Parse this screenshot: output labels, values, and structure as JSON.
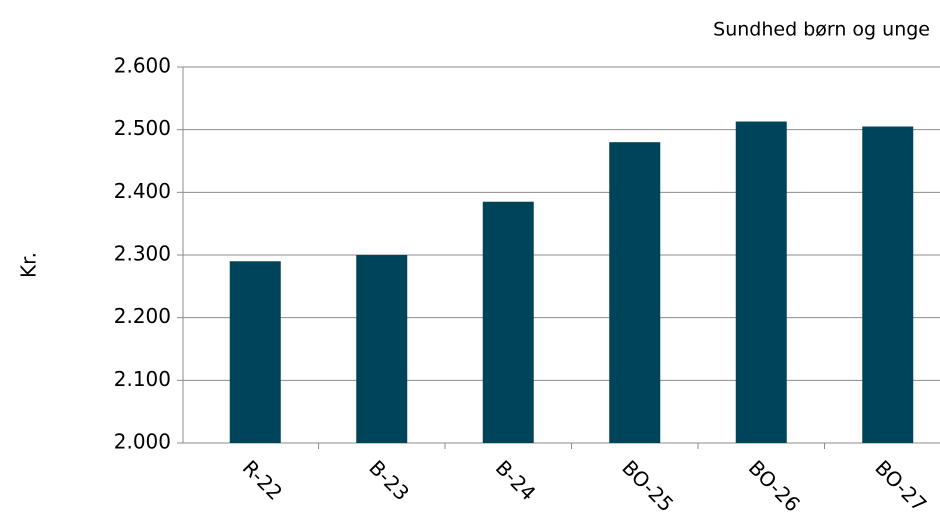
{
  "chart_data": {
    "type": "bar",
    "title": "Sundhed børn og unge",
    "y_label": "Kr.",
    "categories": [
      "R-22",
      "B-23",
      "B-24",
      "BO-25",
      "BO-26",
      "BO-27"
    ],
    "values": [
      2290,
      2300,
      2385,
      2480,
      2513,
      2505
    ],
    "color": "#00445a",
    "ylim": [
      2000,
      2600
    ],
    "yticks": [
      {
        "value": 2000,
        "label": "2.000"
      },
      {
        "value": 2100,
        "label": "2.100"
      },
      {
        "value": 2200,
        "label": "2.200"
      },
      {
        "value": 2300,
        "label": "2.300"
      },
      {
        "value": 2400,
        "label": "2.400"
      },
      {
        "value": 2500,
        "label": "2.500"
      },
      {
        "value": 2600,
        "label": "2.600"
      }
    ],
    "grid": true
  }
}
